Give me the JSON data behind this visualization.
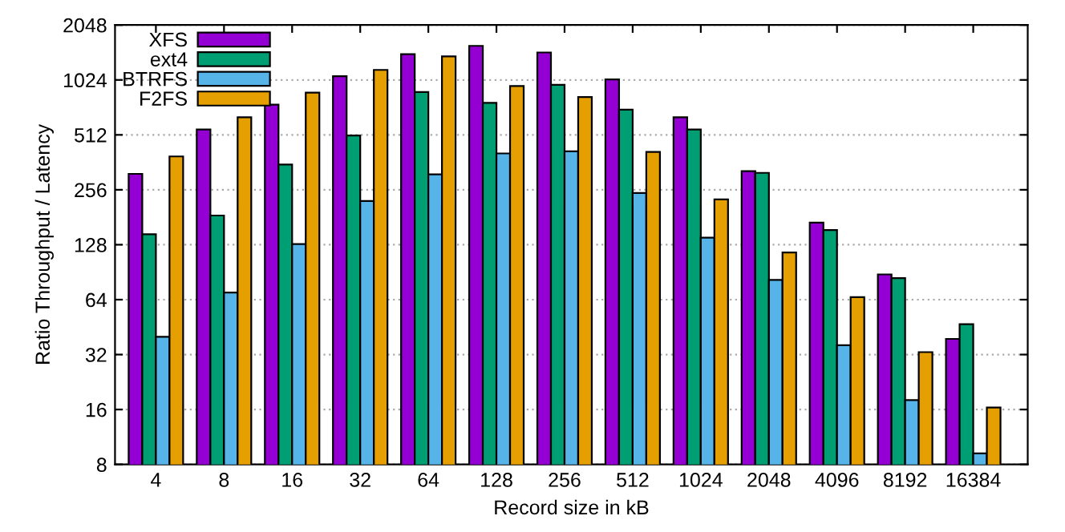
{
  "chart_data": {
    "type": "bar",
    "xlabel": "Record size in kB",
    "ylabel": "Ratio Throughput / Latency",
    "categories": [
      "4",
      "8",
      "16",
      "32",
      "64",
      "128",
      "256",
      "512",
      "1024",
      "2048",
      "4096",
      "8192",
      "16384"
    ],
    "series": [
      {
        "name": "XFS",
        "color": "#9400d3",
        "values": [
          313,
          548,
          750,
          1074,
          1418,
          1574,
          1448,
          1031,
          639,
          324,
          169,
          88,
          39
        ]
      },
      {
        "name": "ext4",
        "color": "#009e73",
        "values": [
          146,
          185,
          352,
          508,
          879,
          766,
          962,
          704,
          548,
          317,
          154,
          84,
          47
        ]
      },
      {
        "name": "BTRFS",
        "color": "#56b4e9",
        "values": [
          40,
          70,
          129,
          222,
          311,
          405,
          416,
          246,
          140,
          82,
          36,
          18,
          9.2
        ]
      },
      {
        "name": "F2FS",
        "color": "#e69f00",
        "values": [
          390,
          639,
          873,
          1162,
          1379,
          949,
          826,
          413,
          227,
          116,
          66,
          33,
          16.4
        ]
      }
    ],
    "log": "y",
    "ylim": [
      8,
      2048
    ],
    "yticks": [
      8,
      16,
      32,
      64,
      128,
      256,
      512,
      1024,
      2048
    ],
    "grid": "y",
    "legend": "top left"
  }
}
